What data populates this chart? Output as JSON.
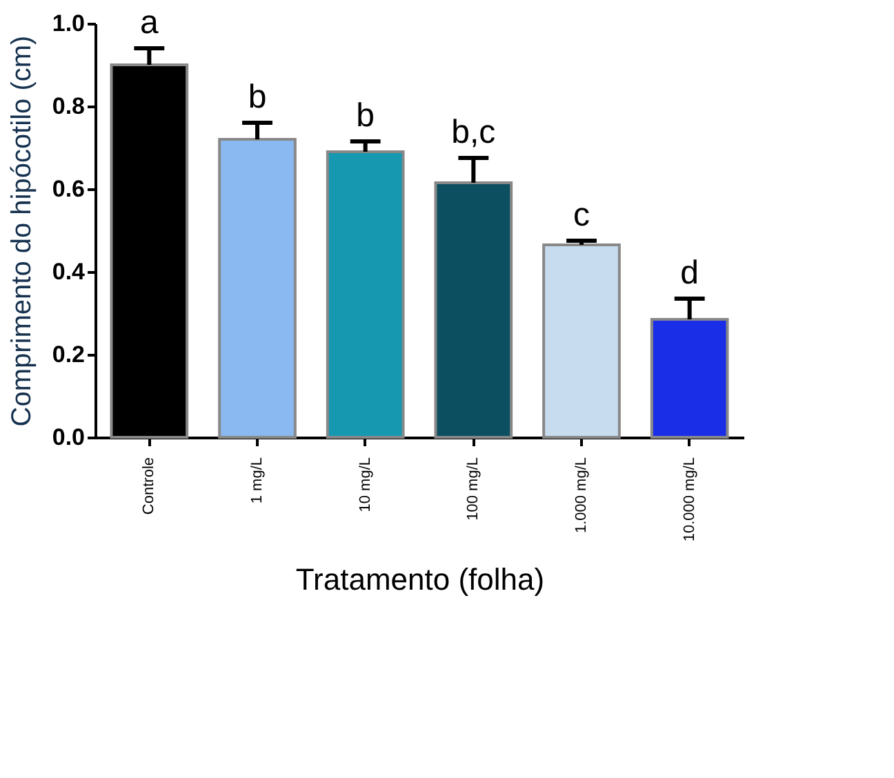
{
  "chart_data": {
    "type": "bar",
    "xlabel": "Tratamento (folha)",
    "ylabel": "Comprimento do hipócotilo (cm)",
    "categories": [
      "Controle",
      "1 mg/L",
      "10 mg/L",
      "100 mg/L",
      "1.000 mg/L",
      "10.000 mg/L"
    ],
    "values": [
      0.9,
      0.72,
      0.69,
      0.615,
      0.465,
      0.285
    ],
    "colors": [
      "#000000",
      "#8ab8f0",
      "#1598b0",
      "#0b4f60",
      "#c8dcf0",
      "#1a2ee8"
    ],
    "errors": [
      [
        0.9,
        0.94
      ],
      [
        0.72,
        0.76
      ],
      [
        0.69,
        0.715
      ],
      [
        0.615,
        0.675
      ],
      [
        0.465,
        0.475
      ],
      [
        0.285,
        0.335
      ]
    ],
    "ylim": [
      0,
      1.0
    ],
    "yticks": [
      {
        "value": 0,
        "label": "0.0"
      },
      {
        "value": 0.2,
        "label": "0.2"
      },
      {
        "value": 0.4,
        "label": "0.4"
      },
      {
        "value": 0.6,
        "label": "0.6"
      },
      {
        "value": 0.8,
        "label": "0.8"
      },
      {
        "value": 1.0,
        "label": "1.0"
      }
    ],
    "grid": false,
    "annotations": [
      "a",
      "b",
      "b",
      "b,c",
      "c",
      "d"
    ]
  }
}
